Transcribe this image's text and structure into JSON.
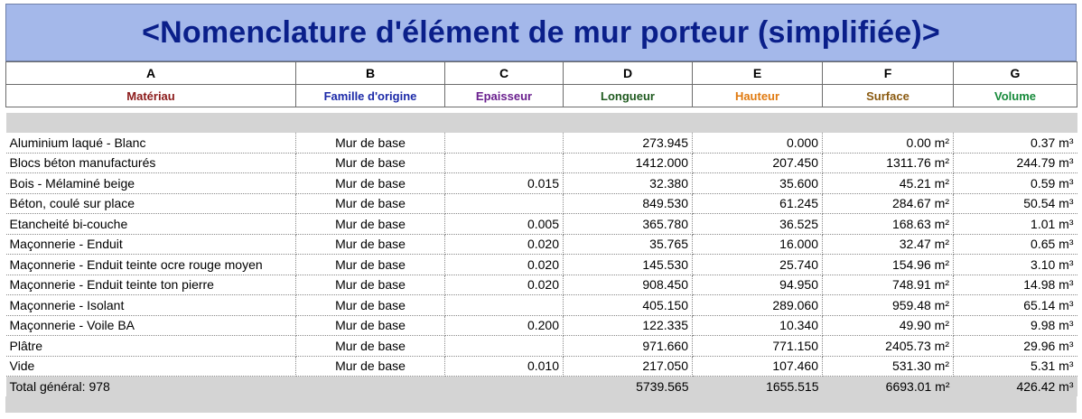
{
  "title": "<Nomenclature d'élément de mur porteur (simplifiée)>",
  "column_letters": [
    "A",
    "B",
    "C",
    "D",
    "E",
    "F",
    "G"
  ],
  "columns": [
    {
      "label": "Matériau",
      "color": "#8b1a1a"
    },
    {
      "label": "Famille d'origine",
      "color": "#1c2aa8"
    },
    {
      "label": "Epaisseur",
      "color": "#6a1f8e"
    },
    {
      "label": "Longueur",
      "color": "#1f5a1f"
    },
    {
      "label": "Hauteur",
      "color": "#e07a10"
    },
    {
      "label": "Surface",
      "color": "#8a5a10"
    },
    {
      "label": "Volume",
      "color": "#168a3a"
    }
  ],
  "rows": [
    [
      "Aluminium laqué - Blanc",
      "Mur de base",
      "",
      "273.945",
      "0.000",
      "0.00 m²",
      "0.37 m³"
    ],
    [
      "Blocs béton manufacturés",
      "Mur de base",
      "",
      "1412.000",
      "207.450",
      "1311.76 m²",
      "244.79 m³"
    ],
    [
      "Bois - Mélaminé beige",
      "Mur de base",
      "0.015",
      "32.380",
      "35.600",
      "45.21 m²",
      "0.59 m³"
    ],
    [
      "Béton, coulé sur place",
      "Mur de base",
      "",
      "849.530",
      "61.245",
      "284.67 m²",
      "50.54 m³"
    ],
    [
      "Etancheité bi-couche",
      "Mur de base",
      "0.005",
      "365.780",
      "36.525",
      "168.63 m²",
      "1.01 m³"
    ],
    [
      "Maçonnerie - Enduit",
      "Mur de base",
      "0.020",
      "35.765",
      "16.000",
      "32.47 m²",
      "0.65 m³"
    ],
    [
      "Maçonnerie - Enduit teinte ocre rouge moyen",
      "Mur de base",
      "0.020",
      "145.530",
      "25.740",
      "154.96 m²",
      "3.10 m³"
    ],
    [
      "Maçonnerie - Enduit teinte ton pierre",
      "Mur de base",
      "0.020",
      "908.450",
      "94.950",
      "748.91 m²",
      "14.98 m³"
    ],
    [
      "Maçonnerie - Isolant",
      "Mur de base",
      "",
      "405.150",
      "289.060",
      "959.48 m²",
      "65.14 m³"
    ],
    [
      "Maçonnerie - Voile BA",
      "Mur de base",
      "0.200",
      "122.335",
      "10.340",
      "49.90 m²",
      "9.98 m³"
    ],
    [
      "Plâtre",
      "Mur de base",
      "",
      "971.660",
      "771.150",
      "2405.73 m²",
      "29.96 m³"
    ],
    [
      "Vide",
      "Mur de base",
      "0.010",
      "217.050",
      "107.460",
      "531.30 m²",
      "5.31 m³"
    ]
  ],
  "total": {
    "label": "Total général: 978",
    "longueur": "5739.565",
    "hauteur": "1655.515",
    "surface": "6693.01 m²",
    "volume": "426.42 m³"
  }
}
